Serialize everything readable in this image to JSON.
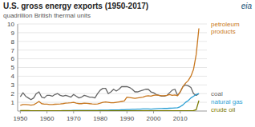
{
  "chart_data": {
    "type": "line",
    "title": "U.S. gross energy exports (1950-2017)",
    "subtitle": "quadrillion British thermal units",
    "annotations": [
      "eia"
    ],
    "x": [
      1950,
      1951,
      1952,
      1953,
      1954,
      1955,
      1956,
      1957,
      1958,
      1959,
      1960,
      1961,
      1962,
      1963,
      1964,
      1965,
      1966,
      1967,
      1968,
      1969,
      1970,
      1971,
      1972,
      1973,
      1974,
      1975,
      1976,
      1977,
      1978,
      1979,
      1980,
      1981,
      1982,
      1983,
      1984,
      1985,
      1986,
      1987,
      1988,
      1989,
      1990,
      1991,
      1992,
      1993,
      1994,
      1995,
      1996,
      1997,
      1998,
      1999,
      2000,
      2001,
      2002,
      2003,
      2004,
      2005,
      2006,
      2007,
      2008,
      2009,
      2010,
      2011,
      2012,
      2013,
      2014,
      2015,
      2016,
      2017
    ],
    "series": [
      {
        "name": "coal",
        "color": "#666666",
        "values": [
          1.65,
          2.1,
          1.7,
          1.5,
          1.3,
          1.5,
          2.0,
          2.2,
          1.6,
          1.5,
          1.8,
          1.8,
          1.7,
          1.9,
          2.0,
          1.8,
          1.7,
          1.8,
          1.7,
          1.6,
          1.9,
          1.7,
          1.5,
          1.6,
          1.8,
          1.7,
          1.6,
          1.6,
          1.5,
          2.0,
          2.4,
          2.6,
          2.6,
          2.0,
          2.2,
          2.5,
          2.3,
          2.5,
          2.8,
          2.8,
          2.8,
          2.7,
          2.5,
          2.2,
          2.2,
          2.3,
          2.4,
          2.5,
          2.5,
          2.2,
          2.1,
          1.9,
          1.8,
          1.7,
          1.7,
          1.8,
          2.1,
          2.4,
          2.5,
          1.8,
          2.2,
          2.8,
          3.0,
          2.9,
          2.7,
          2.0,
          1.8,
          2.0
        ]
      },
      {
        "name": "petroleum\nproducts",
        "color": "#c87820",
        "values": [
          0.65,
          0.75,
          0.75,
          0.72,
          0.68,
          0.72,
          0.9,
          1.1,
          0.85,
          0.8,
          0.8,
          0.75,
          0.75,
          0.78,
          0.8,
          0.82,
          0.85,
          0.9,
          0.92,
          0.95,
          1.0,
          0.9,
          0.85,
          0.85,
          0.9,
          0.88,
          0.85,
          0.82,
          0.8,
          0.82,
          0.9,
          1.0,
          1.05,
          1.0,
          0.95,
          0.95,
          1.0,
          1.05,
          1.1,
          1.15,
          1.6,
          1.55,
          1.5,
          1.45,
          1.5,
          1.55,
          1.6,
          1.7,
          1.75,
          1.7,
          1.8,
          1.85,
          1.8,
          1.75,
          1.75,
          1.8,
          1.9,
          1.8,
          1.85,
          1.75,
          2.2,
          2.8,
          3.2,
          3.5,
          4.0,
          4.8,
          6.5,
          9.5
        ]
      },
      {
        "name": "natural gas",
        "color": "#2b9fd4",
        "values": [
          0.02,
          0.02,
          0.02,
          0.02,
          0.02,
          0.02,
          0.03,
          0.03,
          0.03,
          0.03,
          0.04,
          0.04,
          0.04,
          0.04,
          0.04,
          0.04,
          0.05,
          0.05,
          0.05,
          0.05,
          0.07,
          0.08,
          0.08,
          0.07,
          0.07,
          0.07,
          0.07,
          0.07,
          0.07,
          0.08,
          0.1,
          0.1,
          0.1,
          0.1,
          0.12,
          0.12,
          0.12,
          0.13,
          0.14,
          0.15,
          0.17,
          0.18,
          0.2,
          0.2,
          0.22,
          0.22,
          0.24,
          0.24,
          0.24,
          0.22,
          0.24,
          0.26,
          0.28,
          0.28,
          0.3,
          0.3,
          0.32,
          0.34,
          0.36,
          0.38,
          0.5,
          0.7,
          1.0,
          1.2,
          1.5,
          1.7,
          1.9,
          2.0
        ]
      },
      {
        "name": "crude oil",
        "color": "#7a7a00",
        "values": [
          0.05,
          0.05,
          0.05,
          0.05,
          0.04,
          0.04,
          0.04,
          0.04,
          0.04,
          0.04,
          0.04,
          0.04,
          0.04,
          0.04,
          0.04,
          0.04,
          0.04,
          0.04,
          0.04,
          0.04,
          0.04,
          0.04,
          0.04,
          0.04,
          0.04,
          0.04,
          0.04,
          0.04,
          0.04,
          0.04,
          0.04,
          0.04,
          0.04,
          0.04,
          0.04,
          0.04,
          0.04,
          0.04,
          0.04,
          0.04,
          0.04,
          0.04,
          0.04,
          0.04,
          0.04,
          0.04,
          0.04,
          0.04,
          0.04,
          0.04,
          0.04,
          0.04,
          0.04,
          0.04,
          0.04,
          0.04,
          0.04,
          0.04,
          0.04,
          0.04,
          0.04,
          0.04,
          0.04,
          0.04,
          0.04,
          0.05,
          0.15,
          1.2
        ]
      }
    ],
    "xlim": [
      1949,
      2020
    ],
    "xticks": [
      1950,
      1960,
      1970,
      1980,
      1990,
      2000,
      2010
    ],
    "ylim": [
      0,
      10
    ],
    "yticks": [
      1,
      2,
      3,
      4,
      5,
      6,
      7,
      8,
      9,
      10
    ],
    "grid": true
  }
}
